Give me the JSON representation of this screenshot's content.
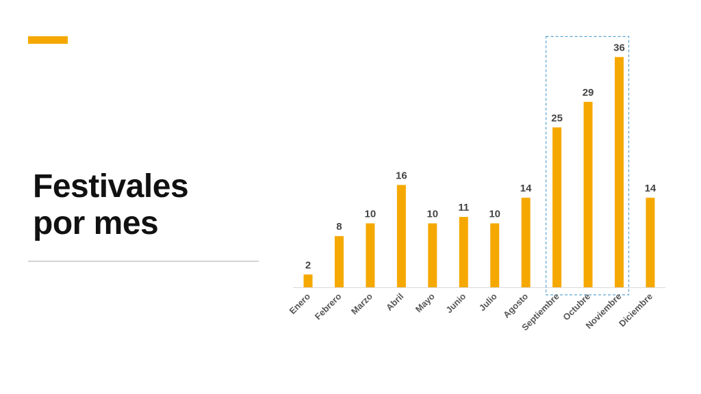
{
  "title": {
    "line1": "Festivales",
    "line2": "por mes"
  },
  "colors": {
    "accent": "#F5A800",
    "highlight_border": "#5BA3D0",
    "axis": "#d9d9d9"
  },
  "chart_data": {
    "type": "bar",
    "categories": [
      "Enero",
      "Febrero",
      "Marzo",
      "Abril",
      "Mayo",
      "Junio",
      "Julio",
      "Agosto",
      "Septiembre",
      "Octubre",
      "Noviembre",
      "Diciembre"
    ],
    "values": [
      2,
      8,
      10,
      16,
      10,
      11,
      10,
      14,
      25,
      29,
      36,
      14
    ],
    "title": "",
    "xlabel": "",
    "ylabel": "",
    "ylim": [
      0,
      40
    ],
    "grid": false,
    "highlighted_categories": [
      "Septiembre",
      "Octubre",
      "Noviembre"
    ]
  }
}
